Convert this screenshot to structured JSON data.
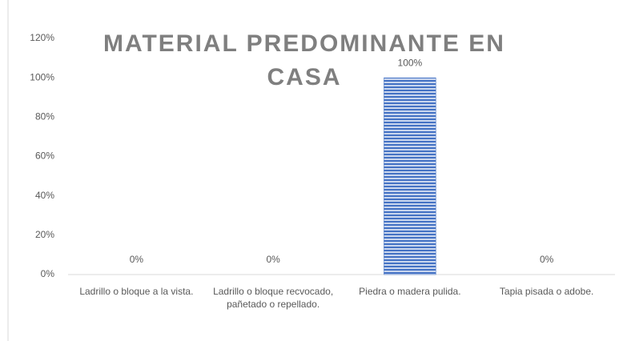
{
  "chart_data": {
    "type": "bar",
    "title": "MATERIAL PREDOMINANTE EN CASA",
    "categories": [
      "Ladrillo o bloque a la vista.",
      "Ladrillo o bloque recvocado, pañetado o repellado.",
      "Piedra o madera pulida.",
      "Tapia pisada o adobe."
    ],
    "values": [
      0,
      0,
      100,
      0
    ],
    "value_labels": [
      "0%",
      "0%",
      "100%",
      "0%"
    ],
    "color": "#4472c4",
    "ylim": [
      0,
      120
    ],
    "yticks": [
      {
        "value": 0,
        "label": "0%"
      },
      {
        "value": 20,
        "label": "20%"
      },
      {
        "value": 40,
        "label": "40%"
      },
      {
        "value": 60,
        "label": "60%"
      },
      {
        "value": 80,
        "label": "80%"
      },
      {
        "value": 100,
        "label": "100%"
      },
      {
        "value": 120,
        "label": "120%"
      }
    ],
    "grid": false
  }
}
